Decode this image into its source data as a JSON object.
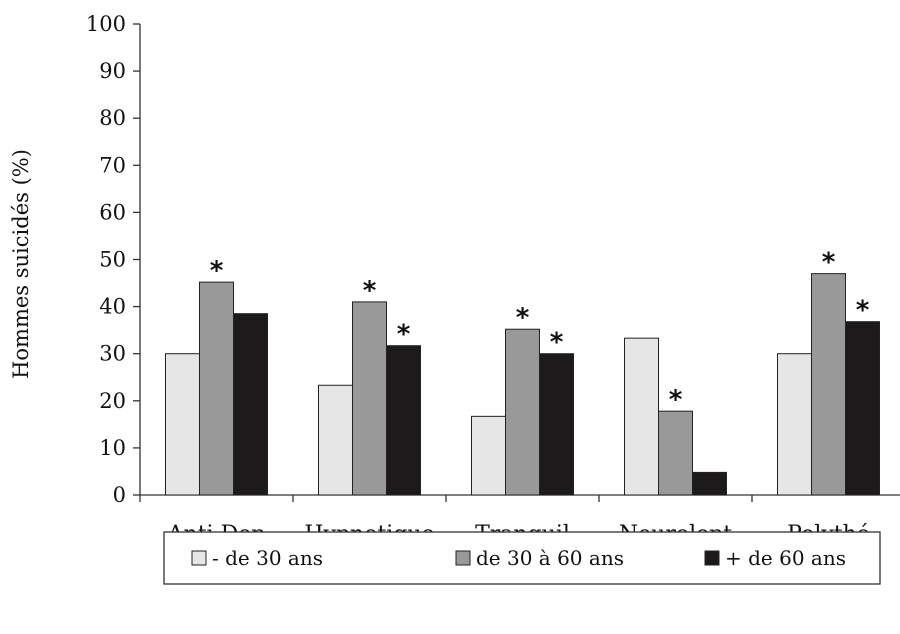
{
  "chart_data": {
    "type": "bar",
    "title": "",
    "xlabel": "",
    "ylabel": "Hommes suicidés (%)",
    "ylim": [
      0,
      100
    ],
    "yticks": [
      0,
      10,
      20,
      30,
      40,
      50,
      60,
      70,
      80,
      90,
      100
    ],
    "categories": [
      "Anti Dep",
      "Hypnotique",
      "Tranquil",
      "Neurolept",
      "Polythé"
    ],
    "series": [
      {
        "name": "- de 30 ans",
        "color": "#e6e6e6",
        "values": [
          30,
          23.3,
          16.7,
          33.3,
          30
        ],
        "significant": [
          false,
          false,
          false,
          false,
          false
        ]
      },
      {
        "name": "de 30 à 60 ans",
        "color": "#999999",
        "values": [
          45.2,
          41,
          35.2,
          17.8,
          47
        ],
        "significant": [
          true,
          true,
          true,
          true,
          true
        ]
      },
      {
        "name": "+ de 60 ans",
        "color": "#1c1a1b",
        "values": [
          38.5,
          31.7,
          30,
          4.8,
          36.8
        ],
        "significant": [
          false,
          true,
          true,
          false,
          true
        ]
      }
    ],
    "significance_marker": "*",
    "grid": false,
    "legend_position": "bottom"
  }
}
